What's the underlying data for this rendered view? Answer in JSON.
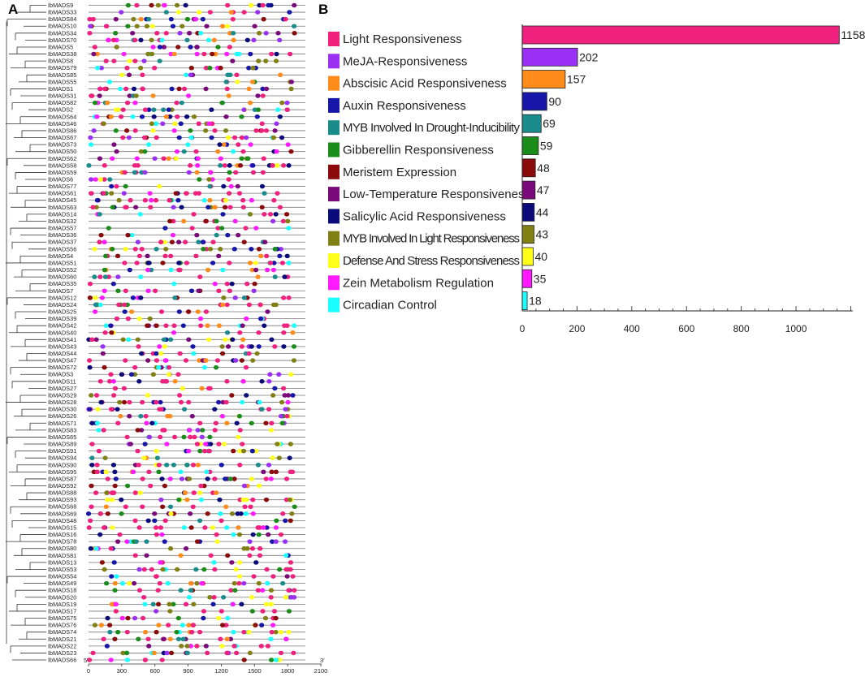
{
  "panels": {
    "a": "A",
    "b": "B"
  },
  "chart_data": [
    {
      "type": "scatter",
      "panel": "A",
      "xlim": [
        0,
        2100
      ],
      "x_ticks": [
        "0",
        "300",
        "600",
        "900",
        "1200",
        "1500",
        "1800",
        "2100"
      ],
      "end_labels": {
        "left": "5'",
        "right": "3'"
      },
      "genes": [
        "IbMADS9",
        "IbMADS33",
        "IbMADS84",
        "IbMADS10",
        "IbMADS34",
        "IbMADS70",
        "IbMADS5",
        "IbMADS38",
        "IbMADS8",
        "IbMADS79",
        "IbMADS85",
        "IbMADS55",
        "IbMADS1",
        "IbMADS31",
        "IbMADS82",
        "IbMADS2",
        "IbMADS64",
        "IbMADS46",
        "IbMADS86",
        "IbMADS67",
        "IbMADS73",
        "IbMADS50",
        "IbMADS62",
        "IbMADS58",
        "IbMADS59",
        "IbMADS6",
        "IbMADS77",
        "IbMADS61",
        "IbMADS45",
        "IbMADS63",
        "IbMADS14",
        "IbMADS32",
        "IbMADS57",
        "IbMADS36",
        "IbMADS37",
        "IbMADS56",
        "IbMADS4",
        "IbMADS51",
        "IbMADS52",
        "IbMADS60",
        "IbMADS35",
        "IbMADS7",
        "IbMADS12",
        "IbMADS24",
        "IbMADS25",
        "IbMADS39",
        "IbMADS42",
        "IbMADS40",
        "IbMADS41",
        "IbMADS43",
        "IbMADS44",
        "IbMADS47",
        "IbMADS72",
        "IbMADS3",
        "IbMADS11",
        "IbMADS27",
        "IbMADS29",
        "IbMADS28",
        "IbMADS30",
        "IbMADS26",
        "IbMADS71",
        "IbMADS83",
        "IbMADS65",
        "IbMADS89",
        "IbMADS91",
        "IbMADS94",
        "IbMADS90",
        "IbMADS95",
        "IbMADS87",
        "IbMADS92",
        "IbMADS88",
        "IbMADS93",
        "IbMADS68",
        "IbMADS69",
        "IbMADS48",
        "IbMADS15",
        "IbMADS16",
        "IbMADS78",
        "IbMADS80",
        "IbMADS81",
        "IbMADS13",
        "IbMADS53",
        "IbMADS54",
        "IbMADS49",
        "IbMADS18",
        "IbMADS20",
        "IbMADS19",
        "IbMADS17",
        "IbMADS75",
        "IbMADS76",
        "IbMADS74",
        "IbMADS21",
        "IbMADS22",
        "IbMADS23",
        "IbMADS66"
      ]
    },
    {
      "type": "bar",
      "panel": "B",
      "orientation": "horizontal",
      "categories": [
        "Light Responsiveness",
        "MeJA-Responsiveness",
        "Abscisic Acid Responsiveness",
        "Auxin Responsiveness",
        "MYB Involved In Drought-Inducibility",
        "Gibberellin Responsiveness",
        "Meristem Expression",
        "Low-Temperature Responsiveness",
        "Salicylic Acid Responsiveness",
        "MYB Involved In Light Responsiveness",
        "Defense And Stress Responsiveness",
        "Zein Metabolism Regulation",
        "Circadian Control"
      ],
      "values": [
        1158,
        202,
        157,
        90,
        69,
        59,
        48,
        47,
        44,
        43,
        40,
        35,
        18
      ],
      "colors": [
        "#f0217e",
        "#9b30f5",
        "#ff8c1a",
        "#1616a8",
        "#1a8c8c",
        "#1a8c1a",
        "#8b0a0a",
        "#7a0a7a",
        "#0a0a7a",
        "#808014",
        "#ffff1a",
        "#ff1aff",
        "#1affff"
      ],
      "xlim": [
        0,
        1160
      ],
      "x_ticks": [
        "0",
        "200",
        "400",
        "600",
        "800",
        "1000"
      ]
    }
  ]
}
